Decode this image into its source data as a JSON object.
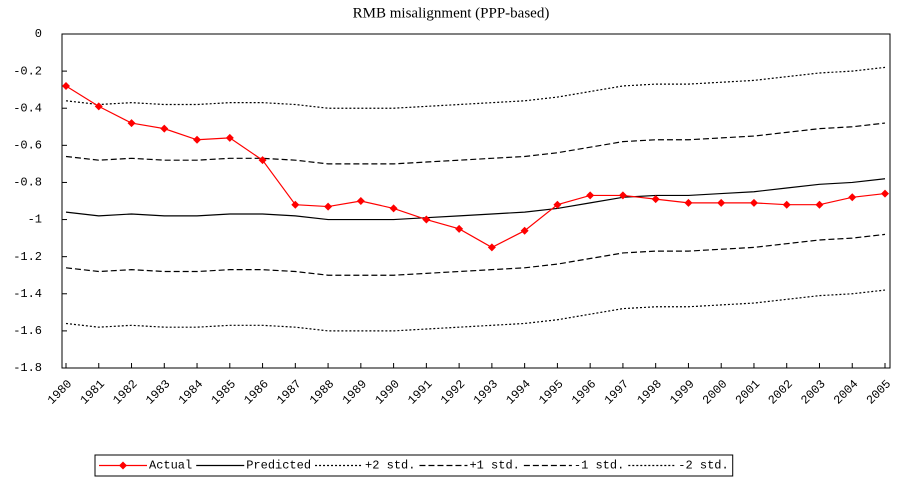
{
  "chart_data": {
    "type": "line",
    "title": "RMB misalignment (PPP-based)",
    "categories": [
      "1980",
      "1981",
      "1982",
      "1983",
      "1984",
      "1985",
      "1986",
      "1987",
      "1988",
      "1989",
      "1990",
      "1991",
      "1992",
      "1993",
      "1994",
      "1995",
      "1996",
      "1997",
      "1998",
      "1999",
      "2000",
      "2001",
      "2002",
      "2003",
      "2004",
      "2005"
    ],
    "series": [
      {
        "name": "Actual",
        "color": "#ff0000",
        "dash": "solid",
        "marker": "diamond",
        "values": [
          -0.28,
          -0.39,
          -0.48,
          -0.51,
          -0.57,
          -0.56,
          -0.68,
          -0.92,
          -0.93,
          -0.9,
          -0.94,
          -1.0,
          -1.05,
          -1.15,
          -1.06,
          -0.92,
          -0.87,
          -0.87,
          -0.89,
          -0.91,
          -0.91,
          -0.91,
          -0.92,
          -0.92,
          -0.88,
          -0.86
        ]
      },
      {
        "name": "Predicted",
        "color": "#000000",
        "dash": "solid",
        "values": [
          -0.96,
          -0.98,
          -0.97,
          -0.98,
          -0.98,
          -0.97,
          -0.97,
          -0.98,
          -1.0,
          -1.0,
          -1.0,
          -0.99,
          -0.98,
          -0.97,
          -0.96,
          -0.94,
          -0.91,
          -0.88,
          -0.87,
          -0.87,
          -0.86,
          -0.85,
          -0.83,
          -0.81,
          -0.8,
          -0.78
        ]
      },
      {
        "name": "+2 std.",
        "color": "#000000",
        "dash": "dotted",
        "values": [
          -0.36,
          -0.38,
          -0.37,
          -0.38,
          -0.38,
          -0.37,
          -0.37,
          -0.38,
          -0.4,
          -0.4,
          -0.4,
          -0.39,
          -0.38,
          -0.37,
          -0.36,
          -0.34,
          -0.31,
          -0.28,
          -0.27,
          -0.27,
          -0.26,
          -0.25,
          -0.23,
          -0.21,
          -0.2,
          -0.18
        ]
      },
      {
        "name": "+1 std.",
        "color": "#000000",
        "dash": "dashed",
        "values": [
          -0.66,
          -0.68,
          -0.67,
          -0.68,
          -0.68,
          -0.67,
          -0.67,
          -0.68,
          -0.7,
          -0.7,
          -0.7,
          -0.69,
          -0.68,
          -0.67,
          -0.66,
          -0.64,
          -0.61,
          -0.58,
          -0.57,
          -0.57,
          -0.56,
          -0.55,
          -0.53,
          -0.51,
          -0.5,
          -0.48
        ]
      },
      {
        "name": "-1 std.",
        "color": "#000000",
        "dash": "dashed",
        "values": [
          -1.26,
          -1.28,
          -1.27,
          -1.28,
          -1.28,
          -1.27,
          -1.27,
          -1.28,
          -1.3,
          -1.3,
          -1.3,
          -1.29,
          -1.28,
          -1.27,
          -1.26,
          -1.24,
          -1.21,
          -1.18,
          -1.17,
          -1.17,
          -1.16,
          -1.15,
          -1.13,
          -1.11,
          -1.1,
          -1.08
        ]
      },
      {
        "name": "-2 std.",
        "color": "#000000",
        "dash": "dotted",
        "values": [
          -1.56,
          -1.58,
          -1.57,
          -1.58,
          -1.58,
          -1.57,
          -1.57,
          -1.58,
          -1.6,
          -1.6,
          -1.6,
          -1.59,
          -1.58,
          -1.57,
          -1.56,
          -1.54,
          -1.51,
          -1.48,
          -1.47,
          -1.47,
          -1.46,
          -1.45,
          -1.43,
          -1.41,
          -1.4,
          -1.38
        ]
      }
    ],
    "ylim": [
      -1.8,
      0
    ],
    "yticks": [
      0,
      -0.2,
      -0.4,
      -0.6,
      -0.8,
      -1,
      -1.2,
      -1.4,
      -1.6,
      -1.8
    ],
    "legend": "bottom"
  }
}
